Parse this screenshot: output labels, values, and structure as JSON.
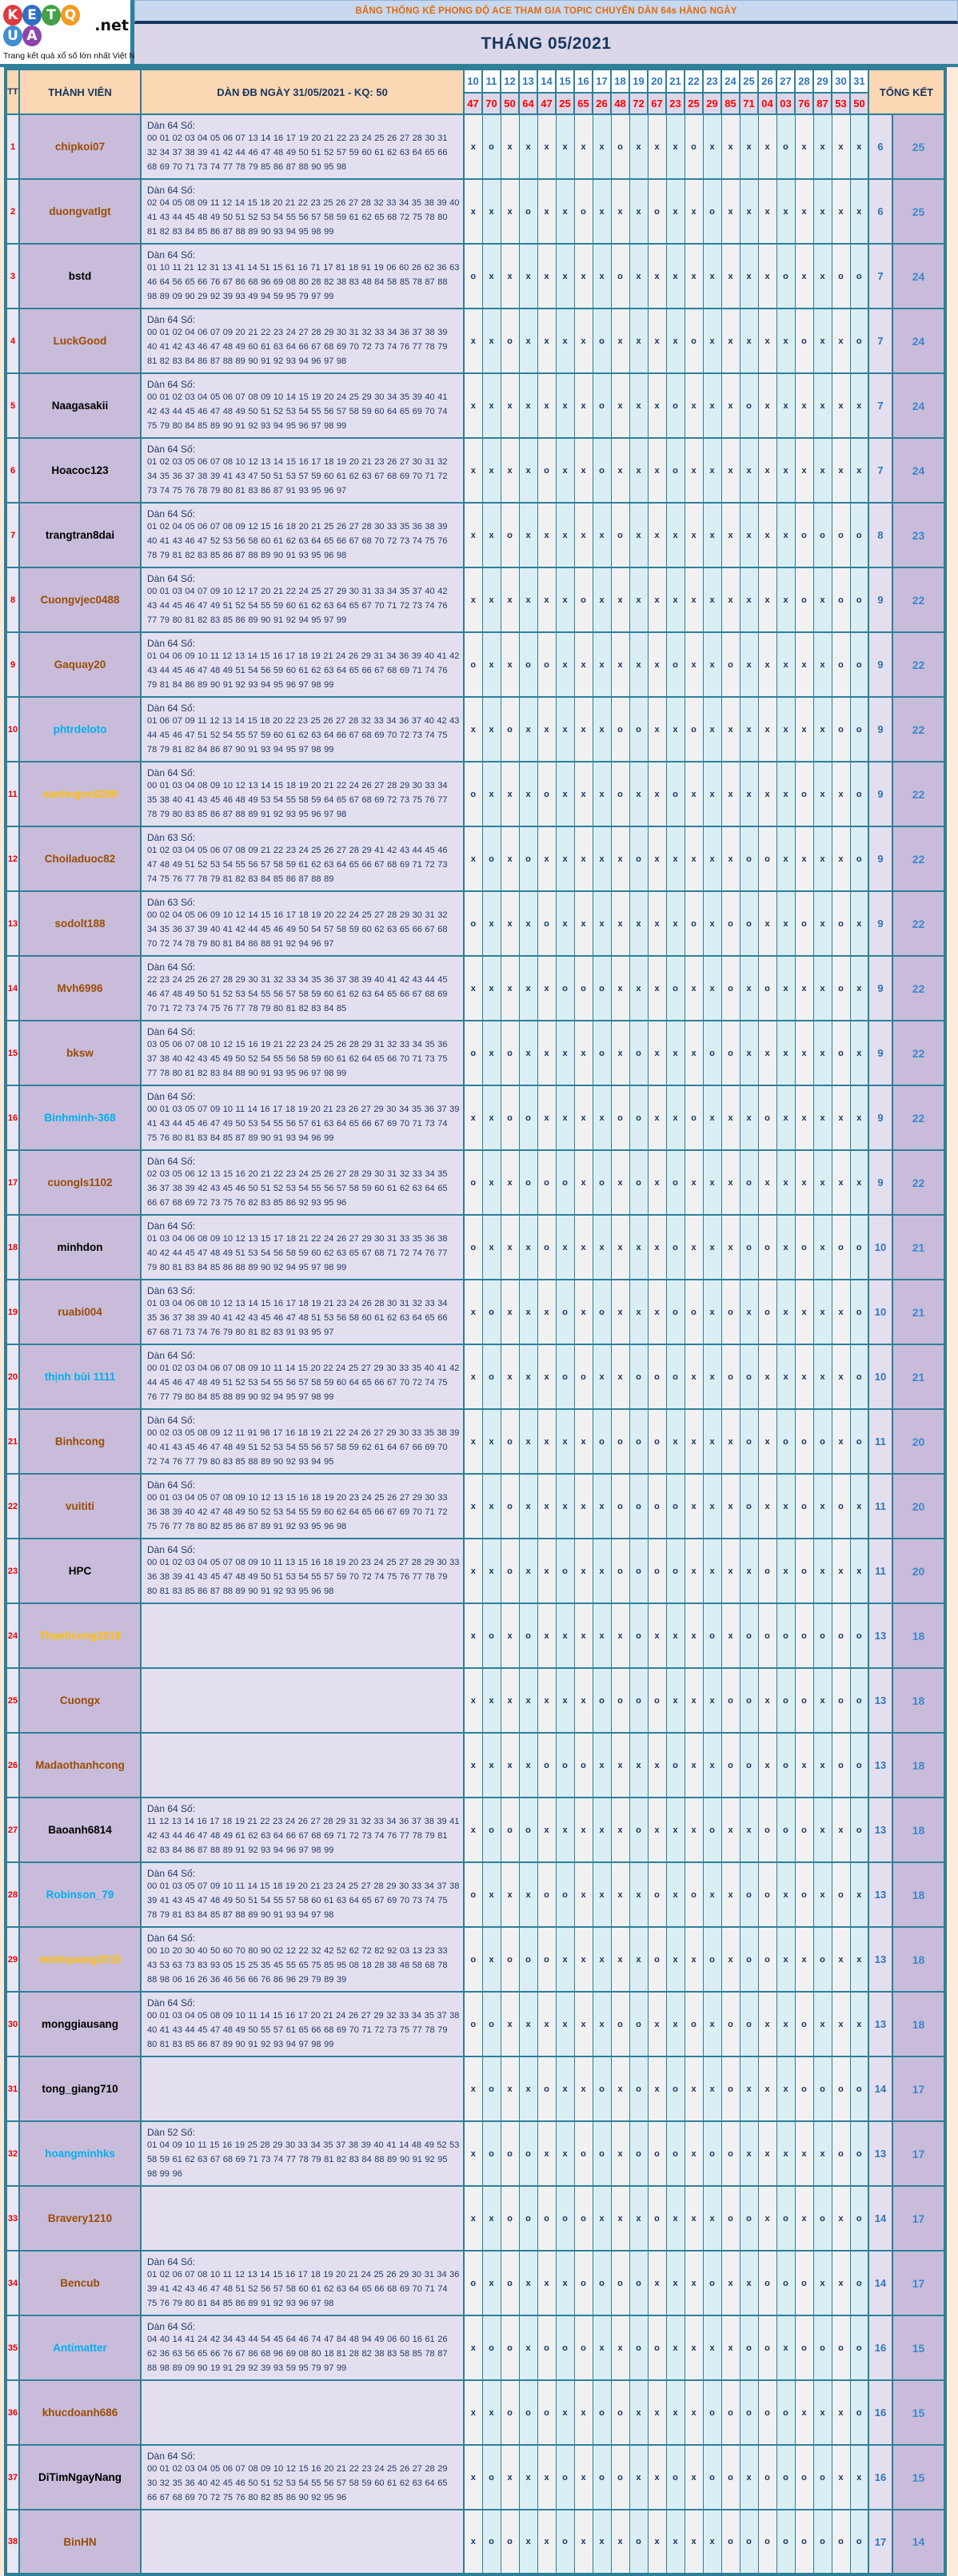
{
  "logo": {
    "letters": [
      {
        "ch": "K",
        "bg": "#e2383f"
      },
      {
        "ch": "E",
        "bg": "#2f6fc1"
      },
      {
        "ch": "T",
        "bg": "#43a047"
      },
      {
        "ch": "Q",
        "bg": "#f59a23"
      },
      {
        "ch": "U",
        "bg": "#3f8fd4"
      },
      {
        "ch": "A",
        "bg": "#8e44ad"
      }
    ],
    "suffix": ".net",
    "tagline": "Trang kết quả xổ số lớn nhất Việt Nam"
  },
  "banner": {
    "text": "BẢNG THỐNG KÊ PHONG ĐỘ ACE THAM GIA TOPIC CHUYÊN DÀN 64s HÀNG NGÀY"
  },
  "month_title": "THÁNG 05/2021",
  "colors": {
    "border_teal": "#2e8099",
    "page_bg": "#fdeada",
    "header_peach": "#fbd7b4",
    "banner_bg": "#c7d8ef",
    "banner_text": "#e26b0a",
    "month_bg": "#dcd7e8",
    "navy_text": "#17365d",
    "day_text": "#2e75b6",
    "kq_text": "#ff0000",
    "tt_text": "#e80000",
    "member_bg": "#c9bcda",
    "dan_bg": "#e4dfef",
    "mark_col_a": "#f2f1f2",
    "mark_col_b": "#daeef3",
    "name_brown": "#9a4d05",
    "name_blue": "#00b0f0",
    "name_gold": "#ffc000"
  },
  "table": {
    "headers": {
      "tt": "TT",
      "member": "THÀNH VIÊN",
      "dan": "DÀN ĐB NGÀY 31/05/2021 - KQ: 50",
      "total": "TỔNG KẾT"
    },
    "days": [
      "10",
      "11",
      "12",
      "13",
      "14",
      "15",
      "16",
      "17",
      "18",
      "19",
      "20",
      "21",
      "22",
      "23",
      "24",
      "25",
      "26",
      "27",
      "28",
      "29",
      "30",
      "31"
    ],
    "results": [
      "47",
      "70",
      "50",
      "64",
      "47",
      "25",
      "65",
      "26",
      "48",
      "72",
      "67",
      "23",
      "25",
      "29",
      "85",
      "71",
      "04",
      "03",
      "76",
      "87",
      "53",
      "50"
    ],
    "rows": [
      {
        "tt": "1",
        "name": "chipkoi07",
        "color": "brown",
        "dan_label": "Dàn 64 Số:",
        "numbers": "00 01 02 03 04 05 06 07 13 14 16 17 19 20 21 22 23 24 25 26 27 28 30 31 32 34 37 38 39 41 42 44 46 47 48 49 50 51 52 57 59 60 61 62 63 64 65 66 68 69 70 71 73 74 77 78 79 85 86 87 88 90 95 98",
        "marks": "xoxxxxxxoxxxoxxxxoxxxx",
        "t1": "6",
        "t2": "25"
      },
      {
        "tt": "2",
        "name": "duongvatlgt",
        "color": "brown",
        "dan_label": "Dàn 64 Số:",
        "numbers": "02 04 05 08 09 11 12 14 15 18 20 21 22 23 25 26 27 28 32 33 34 35 38 39 40 41 43 44 45 48 49 50 51 52 53 54 55 56 57 58 59 61 62 65 68 72 75 78 80 81 82 83 84 85 86 87 88 89 90 93 94 95 98 99",
        "marks": "xxxoxxoxxxoxxoxxxxxxxx",
        "t1": "6",
        "t2": "25"
      },
      {
        "tt": "3",
        "name": "bstd",
        "color": "black",
        "dan_label": "Dàn 64 Số:",
        "numbers": "01 10 11 21 12 31 13 41 14 51 15 61 16 71 17 81 18 91 19 06 60 26 62 36 63 46 64 56 65 66 76 67 86 68 96 69 08 80 28 82 38 83 48 84 58 85 78 87 88 98 89 09 90 29 92 39 93 49 94 59 95 79 97 99",
        "marks": "oxxxxxxxoxxxxxxxxoxxoo",
        "t1": "7",
        "t2": "24"
      },
      {
        "tt": "4",
        "name": "LuckGood",
        "color": "brown",
        "dan_label": "Dàn 64 Số:",
        "numbers": "00 01 02 04 06 07 09 20 21 22 23 24 27 28 29 30 31 32 33 34 36 37 38 39 40 41 42 43 46 47 48 49 60 61 63 64 66 67 68 69 70 72 73 74 76 77 78 79 81 82 83 84 86 87 88 89 90 91 92 93 94 96 97 98",
        "marks": "xxoxxxxoxxxxoxxxxxoxxo",
        "t1": "7",
        "t2": "24"
      },
      {
        "tt": "5",
        "name": "Naagasakii",
        "color": "black",
        "dan_label": "Dàn 64 Số:",
        "numbers": "00 01 02 03 04 05 06 07 08 09 10 14 15 19 20 24 25 29 30 34 35 39 40 41 42 43 44 45 46 47 48 49 50 51 52 53 54 55 56 57 58 59 60 64 65 69 70 74 75 79 80 84 85 89 90 91 92 93 94 95 96 97 98 99",
        "marks": "xxxxxxxoxxxoxxxoxxxxxx",
        "t1": "7",
        "t2": "24"
      },
      {
        "tt": "6",
        "name": "Hoacoc123",
        "color": "black",
        "dan_label": "Dàn 64 Số:",
        "numbers": "01 02 03 05 06 07 08 10 12 13 14 15 16 17 18 19 20 21 23 26 27 30 31 32 34 35 36 37 38 39 41 43 47 50 51 53 57 59 60 61 62 63 67 68 69 70 71 72 73 74 75 76 78 79 80 81 83 86 87 91 93 95 96 97",
        "marks": "xxxxoxxoxxxoxxxxxxxxxx",
        "t1": "7",
        "t2": "24"
      },
      {
        "tt": "7",
        "name": "trangtran8dai",
        "color": "black",
        "dan_label": "Dàn 64 Số:",
        "numbers": "01 02 04 05 06 07 08 09 12 15 16 18 20 21 25 26 27 28 30 33 35 36 38 39 40 41 43 46 47 52 53 56 58 60 61 62 63 64 65 66 67 68 70 72 73 74 75 76 78 79 81 82 83 85 86 87 88 89 90 91 93 95 96 98",
        "marks": "xxoxxxxxoxxxxxxxxxoooo",
        "t1": "8",
        "t2": "23"
      },
      {
        "tt": "8",
        "name": "Cuongvjec0488",
        "color": "brown",
        "dan_label": "Dàn 64 Số:",
        "numbers": "00 01 03 04 07 09 10 12 17 20 21 22 24 25 27 29 30 31 33 34 35 37 40 42 43 44 45 46 47 49 51 52 54 55 59 60 61 62 63 64 65 67 70 71 72 73 74 76 77 79 80 81 82 83 85 86 89 90 91 92 94 95 97 99",
        "marks": "xxxxxxoxxxxxxxxxxxoxoo",
        "t1": "9",
        "t2": "22"
      },
      {
        "tt": "9",
        "name": "Gaquay20",
        "color": "brown",
        "dan_label": "Dàn 64 Số:",
        "numbers": "01 04 06 09 10 11 12 13 14 15 16 17 18 19 21 24 26 29 31 34 36 39 40 41 42 43 44 45 46 47 48 49 51 54 56 59 60 61 62 63 64 65 66 67 68 69 71 74 76 79 81 84 86 89 90 91 92 93 94 95 96 97 98 99",
        "marks": "oxxooxxxxxxoxxoxxxxxoo",
        "t1": "9",
        "t2": "22"
      },
      {
        "tt": "10",
        "name": "phtrdeloto",
        "color": "blue",
        "dan_label": "Dàn 64 Số:",
        "numbers": "01 06 07 09 11 12 13 14 15 18 20 22 23 25 26 27 28 32 33 34 36 37 40 42 43 44 45 46 47 51 52 54 55 57 59 60 61 62 63 64 66 67 68 69 70 72 73 74 75 78 79 81 82 84 86 87 90 91 93 94 95 97 98 99",
        "marks": "xxoxxxxxooxxoxxxxxxxoo",
        "t1": "9",
        "t2": "22"
      },
      {
        "tt": "11",
        "name": "xanhngoc8299",
        "color": "gold",
        "dan_label": "Dàn 64 Số:",
        "numbers": "00 01 03 04 08 09 10 12 13 14 15 18 19 20 21 22 24 26 27 28 29 30 33 34 35 38 40 41 43 45 46 48 49 53 54 55 58 59 64 65 67 68 69 72 73 75 76 77 78 79 80 83 85 86 87 88 89 91 92 93 95 96 97 98",
        "marks": "oxxxoxxxoxxoxxxxxxoxxo",
        "t1": "9",
        "t2": "22"
      },
      {
        "tt": "12",
        "name": "Choiladuoc82",
        "color": "brown",
        "dan_label": "Dàn 63 Số:",
        "numbers": "01 02 03 04 05 06 07 08 09 21 22 23 24 25 26 27 28 29 41 42 43 44 45 46 47 48 49 51 52 53 54 55 56 57 58 59 61 62 63 64 65 66 67 68 69 71 72 73 74 75 76 77 78 79 81 82 83 84 85 86 87 88 89",
        "marks": "xoxoxxxxxoxxxxxooxxxxo",
        "t1": "9",
        "t2": "22"
      },
      {
        "tt": "13",
        "name": "sodolt188",
        "color": "brown",
        "dan_label": "Dàn 63 Số:",
        "numbers": "00 02 04 05 06 09 10 12 14 15 16 17 18 19 20 22 24 25 27 28 29 30 31 32 34 35 36 37 39 40 41 42 44 45 46 49 50 54 57 58 59 60 62 63 65 66 67 68 70 72 74 78 79 80 81 84 86 88 91 92 94 96 97",
        "marks": "oxxxoxxxxxxxoxooxxoxox",
        "t1": "9",
        "t2": "22"
      },
      {
        "tt": "14",
        "name": "Mvh6996",
        "color": "brown",
        "dan_label": "Dàn 64 Số:",
        "numbers": "22 23 24 25 26 27 28 29 30 31 32 33 34 35 36 37 38 39 40 41 42 43 44 45 46 47 48 49 50 51 52 53 54 55 56 57 58 59 60 61 62 63 64 65 66 67 68 69 70 71 72 73 74 75 76 77 78 79 80 81 82 83 84 85",
        "marks": "xxxxxoooxxxoxxoxoxxxox",
        "t1": "9",
        "t2": "22"
      },
      {
        "tt": "15",
        "name": "bksw",
        "color": "brown",
        "dan_label": "Dàn 64 Số:",
        "numbers": "03 05 06 07 08 10 12 15 16 19 21 22 23 24 25 26 28 29 31 32 33 34 35 36 37 38 40 42 43 45 49 50 52 54 55 56 58 59 60 61 62 64 65 66 70 71 73 75 77 78 80 81 82 83 84 88 90 91 93 95 96 97 98 99",
        "marks": "oxoxxxxoxoxxxooxxxxxox",
        "t1": "9",
        "t2": "22"
      },
      {
        "tt": "16",
        "name": "Binhminh-368",
        "color": "blue",
        "dan_label": "Dàn 64 Số:",
        "numbers": "00 01 03 05 07 09 10 11 14 16 17 18 19 20 21 23 26 27 29 30 34 35 36 37 39 41 43 44 45 46 47 49 50 53 54 55 56 57 61 63 64 65 66 67 69 70 71 73 74 75 76 80 81 83 84 85 87 89 90 91 93 94 96 99",
        "marks": "xxooxxxxooxxoxxxoxxxxx",
        "t1": "9",
        "t2": "22"
      },
      {
        "tt": "17",
        "name": "cuongls1102",
        "color": "brown",
        "dan_label": "Dàn 64 Số:",
        "numbers": "02 03 05 06 12 13 15 16 20 21 22 23 24 25 26 27 28 29 30 31 32 33 34 35 36 37 38 39 42 43 45 46 50 51 52 53 54 55 56 57 58 59 60 61 62 63 64 65 66 67 68 69 72 73 75 76 82 83 85 86 92 93 95 96",
        "marks": "oxxoooxoxoxoxxxoxxxxxx",
        "t1": "9",
        "t2": "22"
      },
      {
        "tt": "18",
        "name": "minhdon",
        "color": "black",
        "dan_label": "Dàn 64 Số:",
        "numbers": "01 03 04 06 08 09 10 12 13 15 17 18 21 22 24 26 27 29 30 31 33 35 36 38 40 42 44 45 47 48 49 51 53 54 56 58 59 60 62 63 65 67 68 71 72 74 76 77 79 80 81 83 84 85 86 88 89 90 92 94 95 97 98 99",
        "marks": "oxxxoxxxxxxoxxxooxoxoo",
        "t1": "10",
        "t2": "21"
      },
      {
        "tt": "19",
        "name": "ruabi004",
        "color": "brown",
        "dan_label": "Dàn 63 Số:",
        "numbers": "01 03 04 06 08 10 12 13 14 15 16 17 18 19 21 23 24 26 28 30 31 32 33 34 35 36 37 38 39 40 41 42 43 45 46 47 48 51 53 56 58 60 61 62 63 64 65 66 67 68 71 73 74 76 79 80 81 82 83 91 93 95 97",
        "marks": "xoxxxoxoxxxooxoxoxxxxo",
        "t1": "10",
        "t2": "21"
      },
      {
        "tt": "20",
        "name": "thịnh bùi 1111",
        "color": "blue",
        "dan_label": "Dàn 64 Số:",
        "numbers": "00 01 02 03 04 06 07 08 09 10 11 14 15 20 22 24 25 27 29 30 33 35 40 41 42 44 45 46 47 48 49 51 52 53 54 55 56 57 58 59 60 64 65 66 67 70 72 74 75 76 77 79 80 84 85 88 89 90 92 94 95 97 98 99",
        "marks": "xoxxxooxxoooxxooxxxxxo",
        "t1": "10",
        "t2": "21"
      },
      {
        "tt": "21",
        "name": "Binhcong",
        "color": "brown",
        "dan_label": "Dàn 64 Số:",
        "numbers": "00 02 03 05 08 09 12 11 91 98 17 16 18 19 21 22 24 26 27 29 30 33 35 38 39 40 41 43 45 46 47 48 49 51 52 53 54 55 56 57 58 59 62 61 64 67 66 69 70 72 74 76 77 79 80 83 85 88 89 90 92 93 94 95",
        "marks": "xxoxxxxooooxxxxoxoooxo",
        "t1": "11",
        "t2": "20"
      },
      {
        "tt": "22",
        "name": "vuititi",
        "color": "brown",
        "dan_label": "Dàn 64 Số:",
        "numbers": "00 01 03 04 05 07 08 09 10 12 13 15 16 18 19 20 23 24 25 26 27 29 30 33 36 38 39 40 42 47 48 49 50 52 53 54 55 59 60 62 64 65 66 67 69 70 71 72 75 76 77 78 80 82 85 86 87 89 91 92 93 95 96 98",
        "marks": "xxoxxxxxooooxxxoxxoxox",
        "t1": "11",
        "t2": "20"
      },
      {
        "tt": "23",
        "name": "HPC",
        "color": "black",
        "dan_label": "Dàn 64 Số:",
        "numbers": "00 01 02 03 04 05 07 08 09 10 11 13 15 16 18 19 20 23 24 25 27 28 29 30 33 36 38 39 41 43 45 47 48 49 50 51 53 54 55 57 59 70 72 74 75 76 77 78 79 80 81 83 85 86 87 88 89 90 91 92 93 95 96 98",
        "marks": "xxoxxoxxooooxxxxoxoxxx",
        "t1": "11",
        "t2": "20"
      },
      {
        "tt": "24",
        "name": "Thanhcong2018",
        "color": "gold",
        "dan_label": "",
        "numbers": "",
        "marks": "xoxoxxxxxoxxxoxooooooo",
        "t1": "13",
        "t2": "18"
      },
      {
        "tt": "25",
        "name": "Cuongx",
        "color": "brown",
        "dan_label": "",
        "numbers": "",
        "marks": "xxxxxxxooooxxxooxooxoo",
        "t1": "13",
        "t2": "18"
      },
      {
        "tt": "26",
        "name": "Madaothanhcong",
        "color": "brown",
        "dan_label": "",
        "numbers": "",
        "marks": "xxxxoooxxxxoxxooxoxxoo",
        "t1": "13",
        "t2": "18"
      },
      {
        "tt": "27",
        "name": "Baoanh6814",
        "color": "black",
        "dan_label": "Dàn 64 Số:",
        "numbers": "11 12 13 14 16 17 18 19 21 22 23 24 26 27 28 29 31 32 33 34 36 37 38 39 41 42 43 44 46 47 48 49 61 62 63 64 66 67 68 69 71 72 73 74 76 77 78 79 81 82 83 84 86 87 88 89 91 92 93 94 96 97 98 99",
        "marks": "xoooxxxxxoxxxoxxoooxxo",
        "t1": "13",
        "t2": "18"
      },
      {
        "tt": "28",
        "name": "Robinson_79",
        "color": "blue",
        "dan_label": "Dàn 64 Số:",
        "numbers": "00 01 03 05 07 09 10 11 14 15 18 19 20 21 23 24 25 27 28 29 30 33 34 37 38 39 41 43 45 47 48 49 50 51 54 55 57 58 60 61 63 64 65 67 69 70 73 74 75 78 79 81 83 84 85 87 88 89 90 91 93 94 97 98",
        "marks": "oxxxooxxxxoxoxxooxoxox",
        "t1": "13",
        "t2": "18"
      },
      {
        "tt": "29",
        "name": "minhquang2015",
        "color": "gold",
        "dan_label": "Dàn 64 Số:",
        "numbers": "00 10 20 30 40 50 60 70 80 90 02 12 22 32 42 52 62 72 82 92 03 13 23 33 43 53 63 73 83 93 05 15 25 35 45 55 65 75 85 95 08 18 28 38 48 58 68 78 88 98 06 16 26 36 46 56 66 76 86 96 29 79 89 39",
        "marks": "oxoooxxxxxoxxoxooxxoxx",
        "t1": "13",
        "t2": "18"
      },
      {
        "tt": "30",
        "name": "monggiausang",
        "color": "black",
        "dan_label": "Dàn 64 Số:",
        "numbers": "00 01 03 04 05 08 09 10 11 14 15 16 17 20 21 24 26 27 29 32 33 34 35 37 38 40 41 43 44 45 47 48 49 50 55 57 61 65 66 68 69 70 71 72 73 75 77 78 79 80 81 83 85 86 87 89 90 91 92 93 94 97 98 99",
        "marks": "ooxxxxxxooxxoxooxxoxxx",
        "t1": "13",
        "t2": "18"
      },
      {
        "tt": "31",
        "name": "tong_giang710",
        "color": "black",
        "dan_label": "",
        "numbers": "",
        "marks": "xoxxoxxoxoxoxxoxxxoooo",
        "t1": "14",
        "t2": "17"
      },
      {
        "tt": "32",
        "name": "hoangminhks",
        "color": "blue",
        "dan_label": "Dàn 52 Số:",
        "numbers": "01 04 09 10 11 15 16 19 25 28 29 30 33 34 35 37 38 39 40 41 14 48 49 52 53 58 59 61 62 63 67 68 69 71 73 74 77 78 79 81 82 83 84 88 89 90 91 92 95 98 99 96",
        "marks": "xoooxxooxoooxooxxxxxoo",
        "t1": "13",
        "t2": "17"
      },
      {
        "tt": "33",
        "name": "Bravery1210",
        "color": "brown",
        "dan_label": "",
        "numbers": "",
        "marks": "xxoooooxxxoxxxooxoxoxo",
        "t1": "14",
        "t2": "17"
      },
      {
        "tt": "34",
        "name": "Bencub",
        "color": "brown",
        "dan_label": "Dàn 64 Số:",
        "numbers": "01 02 06 07 08 10 11 12 13 14 15 16 17 18 19 20 21 24 25 26 29 30 31 34 36 39 41 42 43 46 47 48 51 52 56 57 58 60 61 62 63 64 65 66 68 69 70 71 74 75 76 79 80 81 84 85 86 89 91 92 93 96 97 98",
        "marks": "oxoxxxooooxxxoxxoooxxo",
        "t1": "14",
        "t2": "17"
      },
      {
        "tt": "35",
        "name": "Antimatter",
        "color": "blue",
        "dan_label": "Dàn 64 Số:",
        "numbers": "04 40 14 41 24 42 34 43 44 54 45 64 46 74 47 84 48 94 49 06 60 16 61 26 62 36 63 56 65 66 76 67 86 68 96 69 08 80 18 81 28 82 38 83 58 85 78 87 88 98 89 09 90 19 91 29 92 39 93 59 95 79 97 99",
        "marks": "xooxoooxxooxxxxooxoooo",
        "t1": "16",
        "t2": "15"
      },
      {
        "tt": "36",
        "name": "khucdoanh686",
        "color": "brown",
        "dan_label": "",
        "numbers": "",
        "marks": "xxoooxxooxxxxoooooxxxo",
        "t1": "16",
        "t2": "15"
      },
      {
        "tt": "37",
        "name": "DiTimNgayNang",
        "color": "black",
        "dan_label": "Dàn 64 Số:",
        "numbers": "00 01 02 03 04 05 06 07 08 09 10 12 15 16 20 21 22 23 24 25 26 27 28 29 30 32 35 36 40 42 45 46 50 51 52 53 54 55 56 57 58 59 60 61 62 63 64 65 66 67 68 69 70 72 75 76 80 82 85 86 90 92 95 96",
        "marks": "xoxxxoxooxxoxooxooooxx",
        "t1": "16",
        "t2": "15"
      },
      {
        "tt": "38",
        "name": "BinHN",
        "color": "brown",
        "dan_label": "",
        "numbers": "",
        "marks": "xooxxoxxxoxxxxoooooooo",
        "t1": "17",
        "t2": "14"
      }
    ]
  }
}
